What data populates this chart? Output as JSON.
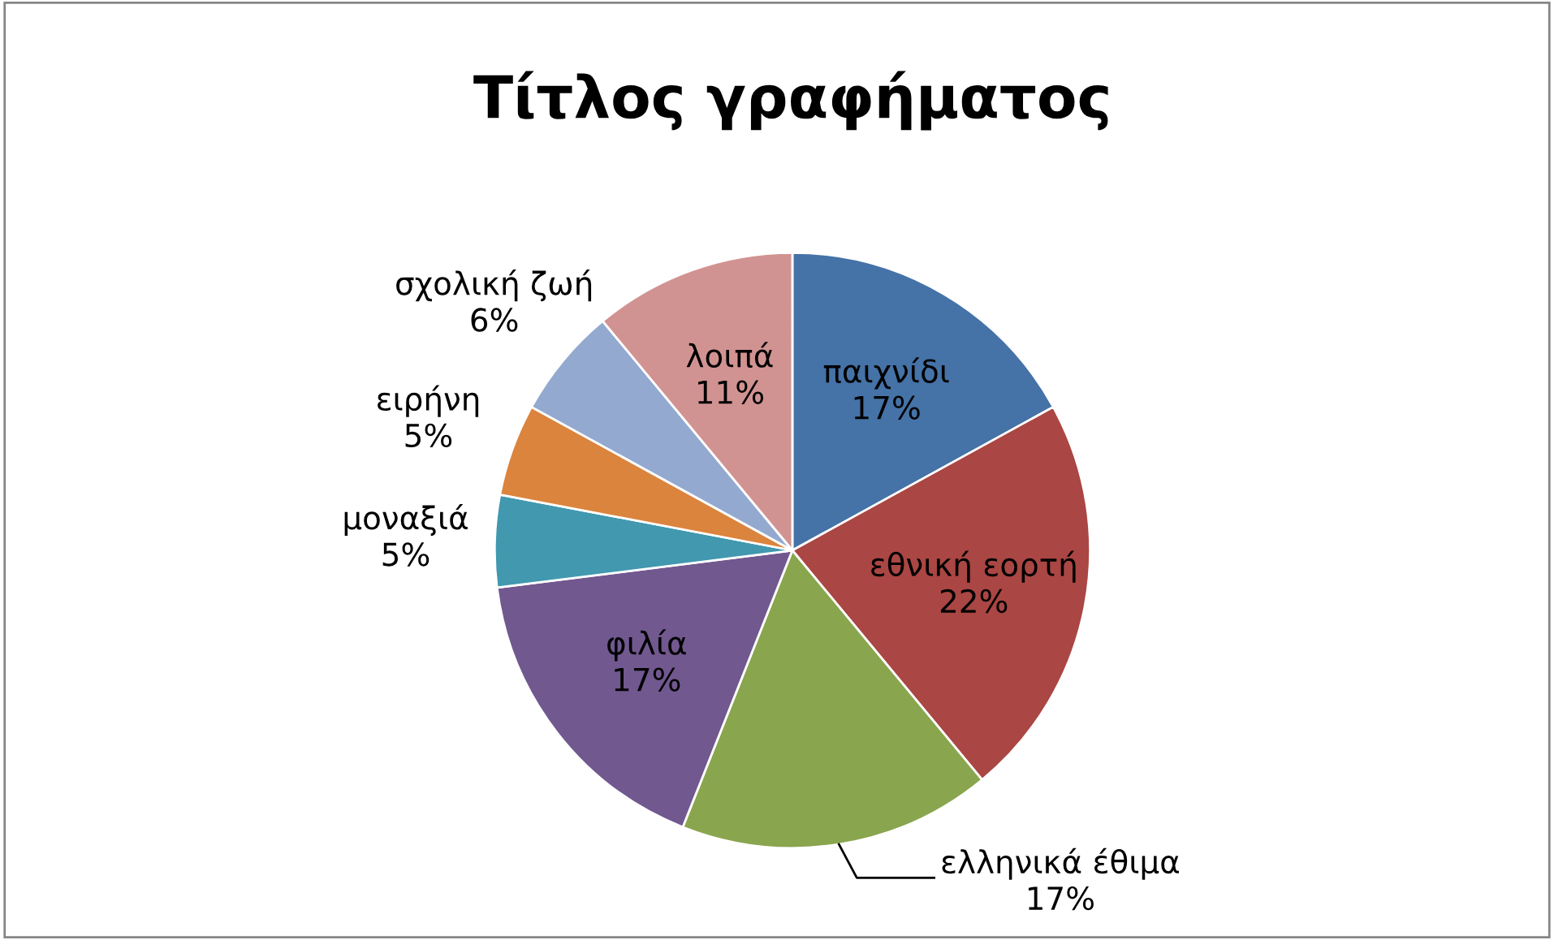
{
  "chart_data": {
    "type": "pie",
    "title": "Τίτλος γραφήματος",
    "categories": [
      "παιχνίδι",
      "εθνική εορτή",
      "ελληνικά έθιμα",
      "φιλία",
      "μοναξιά",
      "ειρήνη",
      "σχολική ζωή",
      "λοιπά"
    ],
    "values": [
      17,
      22,
      17,
      17,
      5,
      5,
      6,
      11
    ],
    "value_labels": [
      "17%",
      "22%",
      "17%",
      "17%",
      "5%",
      "5%",
      "6%",
      "11%"
    ],
    "colors": [
      "#4572a7",
      "#aa4643",
      "#89a54e",
      "#71588f",
      "#4198af",
      "#db843d",
      "#93a9cf",
      "#d19392"
    ],
    "legend": false
  }
}
